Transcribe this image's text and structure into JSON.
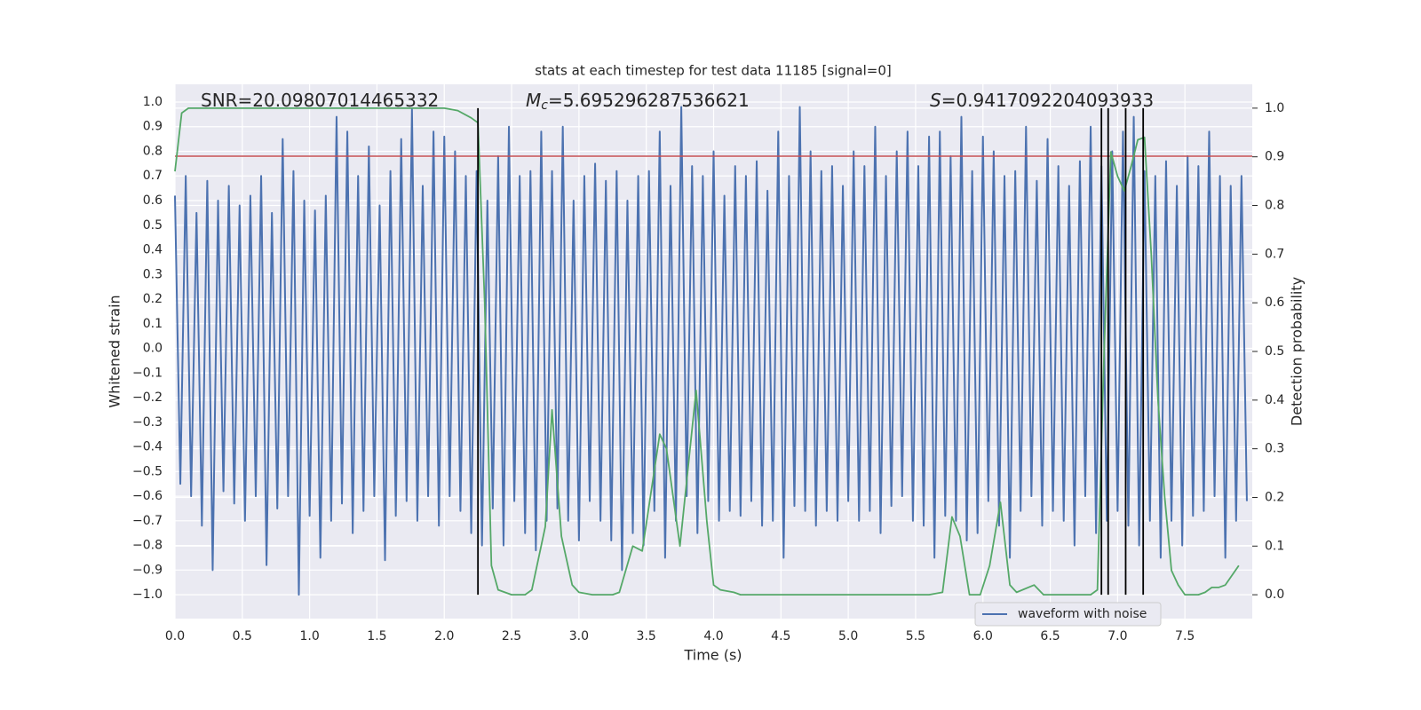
{
  "chart_data": {
    "type": "line",
    "title": "stats at each timestep for test data 11185 [signal=0]",
    "xlabel": "Time (s)",
    "ylabel": "Whitened strain",
    "y2label": "Detection probability",
    "xlim": [
      0,
      8
    ],
    "ylim": [
      -1.097,
      1.072
    ],
    "y2lim": [
      -0.049,
      1.049
    ],
    "grid": true,
    "background": "#eaeaf2",
    "legend": "lower right",
    "xticks": [
      {
        "value": 0,
        "label": "0.0"
      },
      {
        "value": 0.5,
        "label": "0.5"
      },
      {
        "value": 1,
        "label": "1.0"
      },
      {
        "value": 1.5,
        "label": "1.5"
      },
      {
        "value": 2,
        "label": "2.0"
      },
      {
        "value": 2.5,
        "label": "2.5"
      },
      {
        "value": 3,
        "label": "3.0"
      },
      {
        "value": 3.5,
        "label": "3.5"
      },
      {
        "value": 4,
        "label": "4.0"
      },
      {
        "value": 4.5,
        "label": "4.5"
      },
      {
        "value": 5,
        "label": "5.0"
      },
      {
        "value": 5.5,
        "label": "5.5"
      },
      {
        "value": 6,
        "label": "6.0"
      },
      {
        "value": 6.5,
        "label": "6.5"
      },
      {
        "value": 7,
        "label": "7.0"
      },
      {
        "value": 7.5,
        "label": "7.5"
      }
    ],
    "yticks": [
      {
        "value": -1,
        "label": "−1.0"
      },
      {
        "value": -0.9,
        "label": "−0.9"
      },
      {
        "value": -0.8,
        "label": "−0.8"
      },
      {
        "value": -0.7,
        "label": "−0.7"
      },
      {
        "value": -0.6,
        "label": "−0.6"
      },
      {
        "value": -0.5,
        "label": "−0.5"
      },
      {
        "value": -0.4,
        "label": "−0.4"
      },
      {
        "value": -0.3,
        "label": "−0.3"
      },
      {
        "value": -0.2,
        "label": "−0.2"
      },
      {
        "value": -0.1,
        "label": "−0.1"
      },
      {
        "value": 0,
        "label": "0.0"
      },
      {
        "value": 0.1,
        "label": "0.1"
      },
      {
        "value": 0.2,
        "label": "0.2"
      },
      {
        "value": 0.3,
        "label": "0.3"
      },
      {
        "value": 0.4,
        "label": "0.4"
      },
      {
        "value": 0.5,
        "label": "0.5"
      },
      {
        "value": 0.6,
        "label": "0.6"
      },
      {
        "value": 0.7,
        "label": "0.7"
      },
      {
        "value": 0.8,
        "label": "0.8"
      },
      {
        "value": 0.9,
        "label": "0.9"
      },
      {
        "value": 1,
        "label": "1.0"
      }
    ],
    "y2ticks": [
      {
        "value": 0,
        "label": "0.0"
      },
      {
        "value": 0.1,
        "label": "0.1"
      },
      {
        "value": 0.2,
        "label": "0.2"
      },
      {
        "value": 0.3,
        "label": "0.3"
      },
      {
        "value": 0.4,
        "label": "0.4"
      },
      {
        "value": 0.5,
        "label": "0.5"
      },
      {
        "value": 0.6,
        "label": "0.6"
      },
      {
        "value": 0.7,
        "label": "0.7"
      },
      {
        "value": 0.8,
        "label": "0.8"
      },
      {
        "value": 0.9,
        "label": "0.9"
      },
      {
        "value": 1,
        "label": "1.0"
      }
    ],
    "annotations": [
      {
        "text": "SNR=20.09807014465332"
      },
      {
        "symbol": "M",
        "subscript": "c",
        "text": "=5.695296287536621"
      },
      {
        "symbol": "S",
        "text": "=0.9417092204093933"
      }
    ],
    "threshold": {
      "value": 0.78,
      "color": "#c44e52"
    },
    "vlines": {
      "values": [
        2.25,
        6.88,
        6.93,
        7.06,
        7.19
      ],
      "color": "#000000"
    },
    "series": [
      {
        "name": "waveform with noise",
        "color": "#4c72b0",
        "x": [
          0,
          0.04,
          0.08,
          0.12,
          0.16,
          0.2,
          0.24,
          0.28,
          0.32,
          0.36,
          0.4,
          0.44,
          0.48,
          0.52,
          0.56,
          0.6,
          0.64,
          0.68,
          0.72,
          0.76,
          0.8,
          0.84,
          0.88,
          0.92,
          0.96,
          1,
          1.04,
          1.08,
          1.12,
          1.16,
          1.2,
          1.24,
          1.28,
          1.32,
          1.36,
          1.4,
          1.44,
          1.48,
          1.52,
          1.56,
          1.6,
          1.64,
          1.68,
          1.72,
          1.76,
          1.8,
          1.84,
          1.88,
          1.92,
          1.96,
          2,
          2.04,
          2.08,
          2.12,
          2.16,
          2.2,
          2.24,
          2.28,
          2.32,
          2.36,
          2.4,
          2.44,
          2.48,
          2.52,
          2.56,
          2.6,
          2.64,
          2.68,
          2.72,
          2.76,
          2.8,
          2.84,
          2.88,
          2.92,
          2.96,
          3,
          3.04,
          3.08,
          3.12,
          3.16,
          3.2,
          3.24,
          3.28,
          3.32,
          3.36,
          3.4,
          3.44,
          3.48,
          3.52,
          3.56,
          3.6,
          3.64,
          3.68,
          3.72,
          3.76,
          3.8,
          3.84,
          3.88,
          3.92,
          3.96,
          4,
          4.04,
          4.08,
          4.12,
          4.16,
          4.2,
          4.24,
          4.28,
          4.32,
          4.36,
          4.4,
          4.44,
          4.48,
          4.52,
          4.56,
          4.6,
          4.64,
          4.68,
          4.72,
          4.76,
          4.8,
          4.84,
          4.88,
          4.92,
          4.96,
          5,
          5.04,
          5.08,
          5.12,
          5.16,
          5.2,
          5.24,
          5.28,
          5.32,
          5.36,
          5.4,
          5.44,
          5.48,
          5.52,
          5.56,
          5.6,
          5.64,
          5.68,
          5.72,
          5.76,
          5.8,
          5.84,
          5.88,
          5.92,
          5.96,
          6,
          6.04,
          6.08,
          6.12,
          6.16,
          6.2,
          6.24,
          6.28,
          6.32,
          6.36,
          6.4,
          6.44,
          6.48,
          6.52,
          6.56,
          6.6,
          6.64,
          6.68,
          6.72,
          6.76,
          6.8,
          6.84,
          6.88,
          6.92,
          6.96,
          7,
          7.04,
          7.08,
          7.12,
          7.16,
          7.2,
          7.24,
          7.28,
          7.32,
          7.36,
          7.4,
          7.44,
          7.48,
          7.52,
          7.56,
          7.6,
          7.64,
          7.68,
          7.72,
          7.76,
          7.8,
          7.84,
          7.88,
          7.92,
          7.96
        ],
        "values": [
          0.62,
          -0.55,
          0.7,
          -0.6,
          0.55,
          -0.72,
          0.68,
          -0.9,
          0.6,
          -0.58,
          0.66,
          -0.63,
          0.58,
          -0.7,
          0.62,
          -0.6,
          0.7,
          -0.88,
          0.55,
          -0.65,
          0.85,
          -0.6,
          0.72,
          -1.0,
          0.6,
          -0.68,
          0.56,
          -0.85,
          0.62,
          -0.7,
          0.94,
          -0.63,
          0.88,
          -0.75,
          0.7,
          -0.66,
          0.82,
          -0.6,
          0.58,
          -0.86,
          0.72,
          -0.68,
          0.85,
          -0.62,
          0.97,
          -0.7,
          0.66,
          -0.6,
          0.88,
          -0.72,
          0.86,
          -0.6,
          0.8,
          -0.66,
          0.7,
          -0.75,
          0.72,
          -0.8,
          0.6,
          -0.65,
          0.78,
          -0.8,
          0.9,
          -0.62,
          0.7,
          -0.75,
          0.72,
          -0.82,
          0.88,
          -0.7,
          0.72,
          -0.65,
          0.9,
          -0.7,
          0.6,
          -0.78,
          0.7,
          -0.62,
          0.75,
          -0.7,
          0.68,
          -0.78,
          0.72,
          -0.9,
          0.6,
          -0.75,
          0.7,
          -0.8,
          0.72,
          -0.66,
          0.88,
          -0.85,
          0.66,
          -0.7,
          0.98,
          -0.6,
          0.74,
          -0.75,
          0.7,
          -0.62,
          0.8,
          -0.7,
          0.62,
          -0.66,
          0.74,
          -0.68,
          0.7,
          -0.62,
          0.76,
          -0.72,
          0.64,
          -0.7,
          0.88,
          -0.85,
          0.7,
          -0.64,
          0.98,
          -0.66,
          0.8,
          -0.72,
          0.72,
          -0.66,
          0.74,
          -0.7,
          0.66,
          -0.62,
          0.8,
          -0.7,
          0.74,
          -0.66,
          0.9,
          -0.75,
          0.7,
          -0.64,
          0.8,
          -0.6,
          0.88,
          -0.7,
          0.74,
          -0.72,
          0.86,
          -0.85,
          0.88,
          -0.68,
          0.78,
          -0.7,
          0.94,
          -0.78,
          0.72,
          -0.75,
          0.86,
          -0.62,
          0.8,
          -0.72,
          0.7,
          -0.85,
          0.72,
          -0.66,
          0.9,
          -0.6,
          0.68,
          -0.72,
          0.85,
          -0.66,
          0.74,
          -0.7,
          0.66,
          -0.8,
          0.76,
          -0.6,
          0.9,
          -0.75,
          0.74,
          -0.7,
          0.8,
          -0.66,
          0.88,
          -0.72,
          0.94,
          -0.8,
          0.72,
          -0.7,
          0.7,
          -0.85,
          0.76,
          -0.7,
          0.66,
          -0.8,
          0.78,
          -0.68,
          0.74,
          -0.66,
          0.88,
          -0.6,
          0.7,
          -0.85,
          0.66,
          -0.7,
          0.7,
          -0.62
        ]
      },
      {
        "color": "#55a868",
        "axis": "y2",
        "x": [
          0,
          0.05,
          0.1,
          0.5,
          1,
          1.5,
          2,
          2.1,
          2.2,
          2.25,
          2.3,
          2.35,
          2.4,
          2.5,
          2.6,
          2.65,
          2.75,
          2.8,
          2.87,
          2.95,
          3,
          3.1,
          3.25,
          3.3,
          3.4,
          3.47,
          3.6,
          3.65,
          3.75,
          3.87,
          3.95,
          4,
          4.05,
          4.15,
          4.2,
          5,
          5.6,
          5.7,
          5.77,
          5.83,
          5.9,
          5.98,
          6.05,
          6.13,
          6.2,
          6.25,
          6.38,
          6.45,
          6.6,
          6.8,
          6.85,
          6.9,
          6.95,
          7,
          7.05,
          7.1,
          7.15,
          7.2,
          7.25,
          7.3,
          7.35,
          7.4,
          7.45,
          7.5,
          7.6,
          7.65,
          7.7,
          7.75,
          7.8,
          7.9
        ],
        "values": [
          0.87,
          0.99,
          1.0,
          1.0,
          1.0,
          1.0,
          1.0,
          0.995,
          0.98,
          0.97,
          0.6,
          0.06,
          0.01,
          0.0,
          0.0,
          0.01,
          0.14,
          0.38,
          0.12,
          0.02,
          0.005,
          0.0,
          0.0,
          0.005,
          0.1,
          0.09,
          0.33,
          0.3,
          0.1,
          0.42,
          0.15,
          0.02,
          0.01,
          0.005,
          0.0,
          0.0,
          0.0,
          0.005,
          0.16,
          0.12,
          0.0,
          0.0,
          0.06,
          0.19,
          0.02,
          0.005,
          0.02,
          0.0,
          0.0,
          0.0,
          0.01,
          0.5,
          0.91,
          0.86,
          0.83,
          0.88,
          0.935,
          0.94,
          0.7,
          0.4,
          0.2,
          0.05,
          0.02,
          0.0,
          0.0,
          0.005,
          0.015,
          0.015,
          0.02,
          0.06
        ]
      }
    ]
  }
}
